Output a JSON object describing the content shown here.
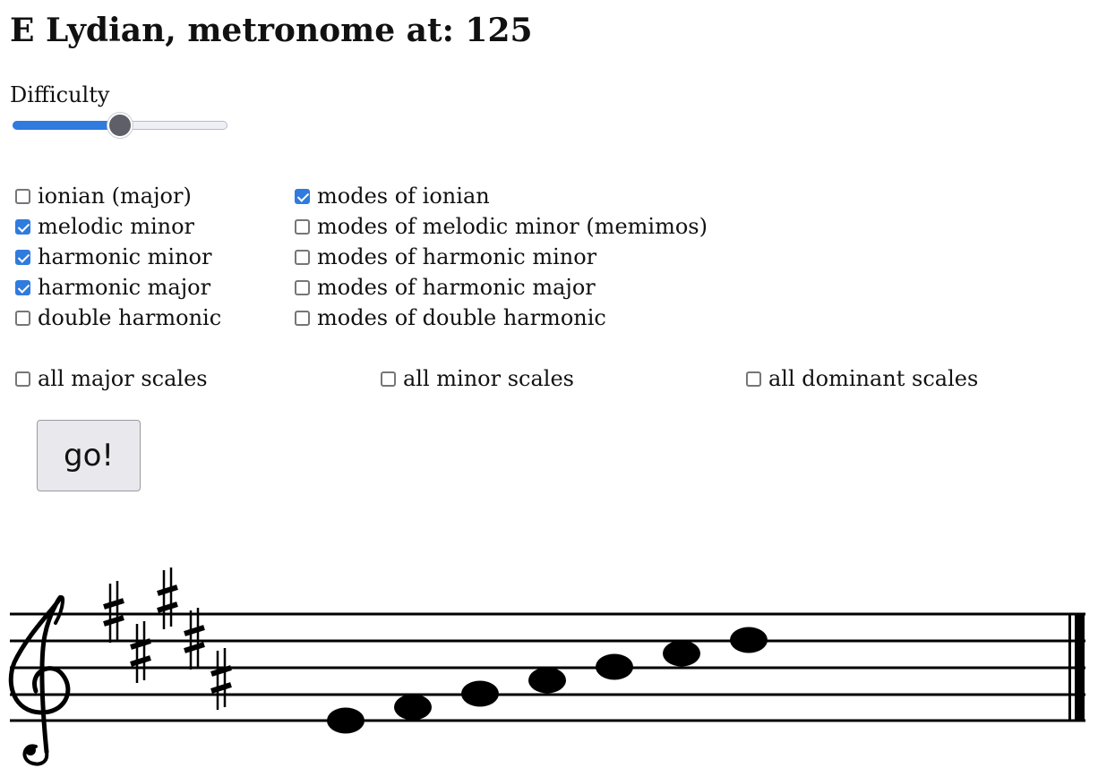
{
  "title": "E Lydian, metronome at: 125",
  "difficulty": {
    "label": "Difficulty",
    "value": 0.5
  },
  "scale_options": {
    "left": [
      {
        "label": "ionian (major)",
        "checked": false
      },
      {
        "label": "melodic minor",
        "checked": true
      },
      {
        "label": "harmonic minor",
        "checked": true
      },
      {
        "label": "harmonic major",
        "checked": true
      },
      {
        "label": "double harmonic",
        "checked": false
      }
    ],
    "right": [
      {
        "label": "modes of ionian",
        "checked": true
      },
      {
        "label": "modes of melodic minor (memimos)",
        "checked": false
      },
      {
        "label": "modes of harmonic minor",
        "checked": false
      },
      {
        "label": "modes of harmonic major",
        "checked": false
      },
      {
        "label": "modes of double harmonic",
        "checked": false
      }
    ]
  },
  "all_options": [
    {
      "label": "all major scales",
      "checked": false
    },
    {
      "label": "all minor scales",
      "checked": false
    },
    {
      "label": "all dominant scales",
      "checked": false
    }
  ],
  "go_button": "go!",
  "notation": {
    "clef": "treble",
    "key_signature": [
      "F#",
      "C#",
      "G#",
      "D#",
      "A#"
    ],
    "notes": [
      "E4",
      "F#4",
      "G#4",
      "A#4",
      "B4",
      "C#5",
      "D#5"
    ],
    "ending": "final barline"
  },
  "colors": {
    "accent": "#2f7bde",
    "slider_thumb": "#5e5f68"
  }
}
